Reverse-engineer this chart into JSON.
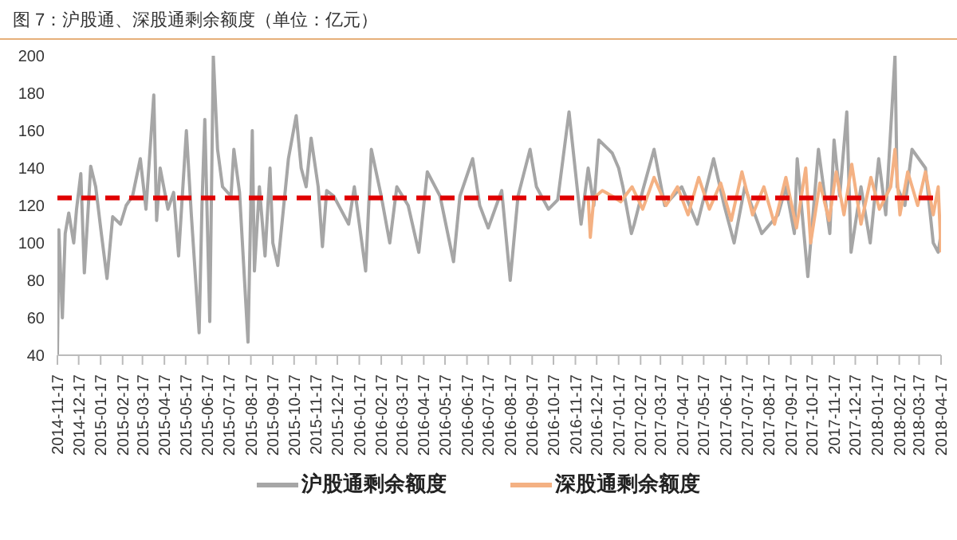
{
  "chart_data": {
    "type": "line",
    "title": "图 7：沪股通、深股通剩余额度（单位：亿元）",
    "ylim": [
      40,
      200
    ],
    "yticks": [
      40,
      60,
      80,
      100,
      120,
      140,
      160,
      180,
      200
    ],
    "xlim": [
      "2014-11-17",
      "2018-04-17"
    ],
    "xticks": [
      "2014-11-17",
      "2014-12-17",
      "2015-01-17",
      "2015-02-17",
      "2015-03-17",
      "2015-04-17",
      "2015-05-17",
      "2015-06-17",
      "2015-07-17",
      "2015-08-17",
      "2015-09-17",
      "2015-10-17",
      "2015-11-17",
      "2015-12-17",
      "2016-01-17",
      "2016-02-17",
      "2016-03-17",
      "2016-04-17",
      "2016-05-17",
      "2016-06-17",
      "2016-07-17",
      "2016-08-17",
      "2016-09-17",
      "2016-10-17",
      "2016-11-17",
      "2016-12-17",
      "2017-01-17",
      "2017-02-17",
      "2017-03-17",
      "2017-04-17",
      "2017-05-17",
      "2017-06-17",
      "2017-07-17",
      "2017-08-17",
      "2017-09-17",
      "2017-10-17",
      "2017-11-17",
      "2017-12-17",
      "2018-01-17",
      "2018-02-17",
      "2018-03-17",
      "2018-04-17"
    ],
    "legend": "bottom",
    "ref_lines": [
      {
        "axis": "y",
        "value": 124,
        "color": "#e00000",
        "line_style": "dashed"
      }
    ],
    "series": [
      {
        "name": "沪股通剩余额度",
        "color": "#a6a6a6",
        "x": [
          "2014-11-17",
          "2014-11-19",
          "2014-11-24",
          "2014-11-28",
          "2014-12-03",
          "2014-12-10",
          "2014-12-14",
          "2014-12-20",
          "2014-12-25",
          "2015-01-03",
          "2015-01-10",
          "2015-01-18",
          "2015-01-26",
          "2015-02-03",
          "2015-02-14",
          "2015-02-22",
          "2015-03-03",
          "2015-03-14",
          "2015-03-22",
          "2015-04-02",
          "2015-04-06",
          "2015-04-11",
          "2015-04-22",
          "2015-04-30",
          "2015-05-07",
          "2015-05-18",
          "2015-05-25",
          "2015-06-05",
          "2015-06-09",
          "2015-06-13",
          "2015-06-20",
          "2015-06-25",
          "2015-07-01",
          "2015-07-08",
          "2015-07-20",
          "2015-07-24",
          "2015-08-01",
          "2015-08-13",
          "2015-08-19",
          "2015-08-22",
          "2015-08-29",
          "2015-09-06",
          "2015-09-13",
          "2015-09-17",
          "2015-09-24",
          "2015-10-09",
          "2015-10-20",
          "2015-10-27",
          "2015-11-03",
          "2015-11-10",
          "2015-11-20",
          "2015-11-26",
          "2015-12-02",
          "2015-12-12",
          "2016-01-02",
          "2016-01-10",
          "2016-01-26",
          "2016-02-03",
          "2016-02-17",
          "2016-02-29",
          "2016-03-10",
          "2016-03-26",
          "2016-04-10",
          "2016-04-22",
          "2016-05-10",
          "2016-05-29",
          "2016-06-07",
          "2016-06-25",
          "2016-07-05",
          "2016-07-17",
          "2016-08-05",
          "2016-08-17",
          "2016-08-28",
          "2016-09-14",
          "2016-09-23",
          "2016-10-10",
          "2016-10-23",
          "2016-11-08",
          "2016-11-25",
          "2016-12-05",
          "2016-12-13",
          "2016-12-20",
          "2017-01-08",
          "2017-01-17",
          "2017-01-23",
          "2017-02-04",
          "2017-02-08",
          "2017-02-20",
          "2017-03-08",
          "2017-03-23",
          "2017-04-16",
          "2017-05-08",
          "2017-05-31",
          "2017-06-15",
          "2017-06-29",
          "2017-07-14",
          "2017-08-07",
          "2017-08-30",
          "2017-09-10",
          "2017-09-22",
          "2017-09-26",
          "2017-10-11",
          "2017-10-26",
          "2017-11-11",
          "2017-11-17",
          "2017-11-25",
          "2017-12-05",
          "2017-12-11",
          "2017-12-25",
          "2018-01-07",
          "2018-01-19",
          "2018-01-29",
          "2018-02-11",
          "2018-02-14",
          "2018-02-25",
          "2018-03-07",
          "2018-03-26",
          "2018-04-06",
          "2018-04-13",
          "2018-04-17"
        ],
        "values": [
          40,
          107,
          60,
          105,
          116,
          100,
          118,
          137,
          84,
          141,
          130,
          105,
          81,
          114,
          110,
          120,
          125,
          145,
          118,
          179,
          112,
          140,
          118,
          127,
          93,
          160,
          115,
          52,
          120,
          166,
          58,
          200,
          150,
          130,
          125,
          150,
          127,
          47,
          160,
          85,
          130,
          93,
          140,
          100,
          88,
          145,
          168,
          140,
          130,
          156,
          130,
          98,
          128,
          125,
          110,
          130,
          85,
          150,
          125,
          100,
          130,
          120,
          95,
          138,
          125,
          90,
          125,
          145,
          120,
          108,
          128,
          80,
          125,
          150,
          130,
          118,
          123,
          170,
          110,
          140,
          120,
          155,
          148,
          140,
          130,
          105,
          110,
          128,
          150,
          120,
          130,
          110,
          145,
          120,
          100,
          130,
          105,
          115,
          130,
          105,
          145,
          82,
          150,
          105,
          155,
          125,
          170,
          95,
          130,
          100,
          145,
          115,
          200,
          130,
          120,
          150,
          140,
          100,
          95,
          105
        ]
      },
      {
        "name": "深股通剩余额度",
        "color": "#f4b183",
        "x": [
          "2016-12-05",
          "2016-12-08",
          "2016-12-13",
          "2016-12-25",
          "2017-01-08",
          "2017-01-20",
          "2017-02-05",
          "2017-02-20",
          "2017-03-08",
          "2017-03-25",
          "2017-04-10",
          "2017-04-25",
          "2017-05-10",
          "2017-05-25",
          "2017-06-10",
          "2017-06-25",
          "2017-07-10",
          "2017-07-25",
          "2017-08-10",
          "2017-08-25",
          "2017-09-10",
          "2017-09-25",
          "2017-10-08",
          "2017-10-15",
          "2017-10-28",
          "2017-11-10",
          "2017-11-20",
          "2017-12-01",
          "2017-12-12",
          "2017-12-25",
          "2018-01-08",
          "2018-01-20",
          "2018-02-05",
          "2018-02-11",
          "2018-02-18",
          "2018-03-01",
          "2018-03-15",
          "2018-03-26",
          "2018-04-06",
          "2018-04-13",
          "2018-04-17"
        ],
        "values": [
          125,
          103,
          124,
          128,
          125,
          122,
          130,
          118,
          135,
          120,
          130,
          115,
          135,
          118,
          132,
          112,
          138,
          115,
          130,
          110,
          135,
          108,
          140,
          100,
          132,
          112,
          138,
          115,
          142,
          110,
          135,
          118,
          130,
          150,
          115,
          138,
          120,
          138,
          115,
          130,
          95
        ]
      }
    ]
  }
}
